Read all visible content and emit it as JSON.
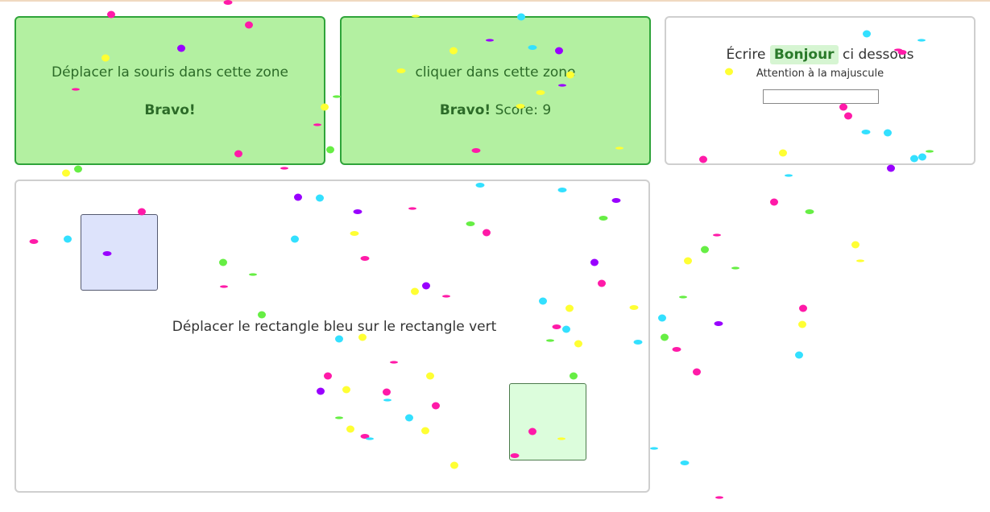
{
  "hover_zone": {
    "instruction": "Déplacer la souris dans cette zone",
    "status": "Bravo!"
  },
  "click_zone": {
    "instruction": "cliquer dans cette zone",
    "status": "Bravo!",
    "score_label": "Score: 9"
  },
  "type_zone": {
    "prompt_before": "Écrire",
    "prompt_word": "Bonjour",
    "prompt_after": "ci dessous",
    "hint": "Attention à la majuscule",
    "input_value": ""
  },
  "drag_zone": {
    "instruction": "Déplacer le rectangle bleu sur le rectangle vert"
  },
  "colors": {
    "success_bg": "#b3f0a1",
    "success_border": "#2fa43a",
    "blue_rect": "#dde3fb",
    "green_rect": "#dcfddc",
    "confetti": [
      "#ff1aa8",
      "#ffff33",
      "#33e0ff",
      "#66ee44",
      "#9900ff"
    ]
  }
}
